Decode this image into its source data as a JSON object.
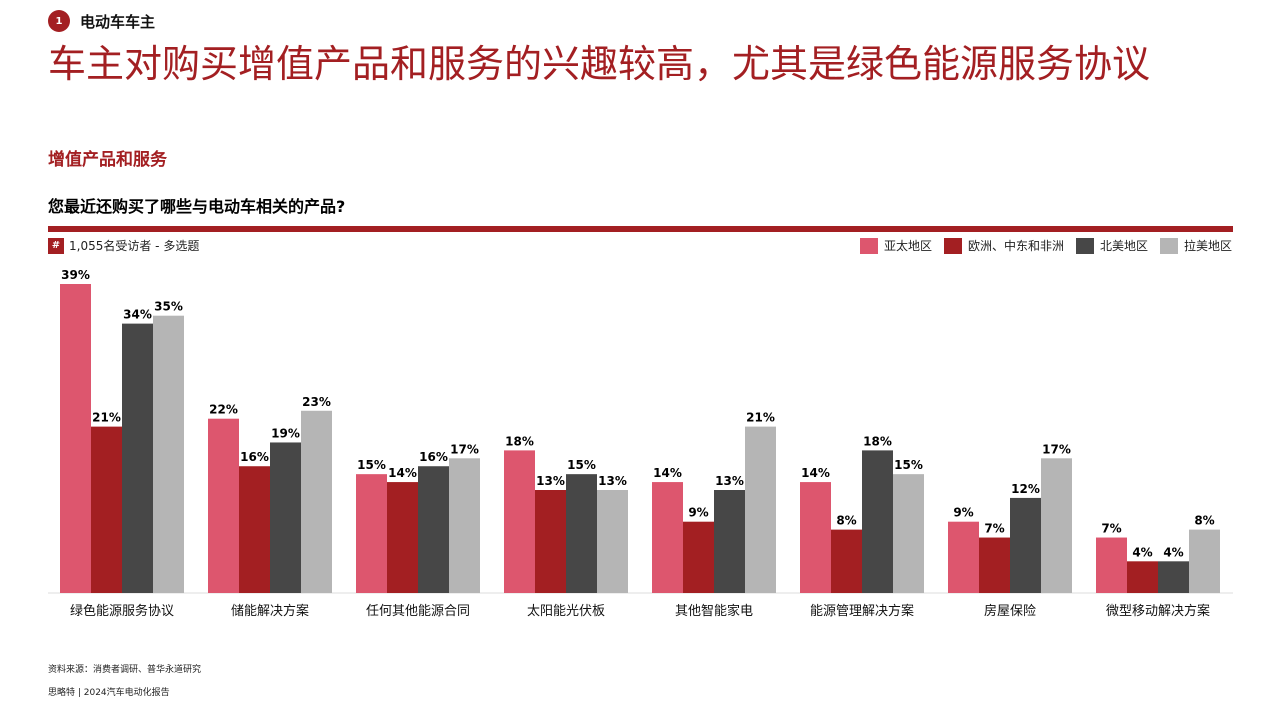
{
  "section": {
    "number": "1",
    "label": "电动车车主"
  },
  "title": "车主对购买增值产品和服务的兴趣较高，尤其是绿色能源服务协议",
  "subtitle": "增值产品和服务",
  "question": "您最近还购买了哪些与电动车相关的产品?",
  "respondents": {
    "icon": "#",
    "text": "1,055名受访者 - 多选题"
  },
  "source": "资料来源：消费者调研、普华永道研究",
  "footer": "思略特 | 2024汽车电动化报告",
  "colors": {
    "accent": "#a31f22"
  },
  "chart_data": {
    "type": "bar",
    "categories": [
      "绿色能源服务协议",
      "储能解决方案",
      "任何其他能源合同",
      "太阳能光伏板",
      "其他智能家电",
      "能源管理解决方案",
      "房屋保险",
      "微型移动解决方案"
    ],
    "series": [
      {
        "name": "亚太地区",
        "color": "#dd566e",
        "values": [
          39,
          22,
          15,
          18,
          14,
          14,
          9,
          7
        ]
      },
      {
        "name": "欧洲、中东和非洲",
        "color": "#a31f22",
        "values": [
          21,
          16,
          14,
          13,
          9,
          8,
          7,
          4
        ]
      },
      {
        "name": "北美地区",
        "color": "#474747",
        "values": [
          34,
          19,
          16,
          15,
          13,
          18,
          12,
          4
        ]
      },
      {
        "name": "拉美地区",
        "color": "#b5b5b5",
        "values": [
          35,
          23,
          17,
          13,
          21,
          15,
          17,
          8
        ]
      }
    ],
    "value_suffix": "%",
    "legend_position": "top-right",
    "ylim": [
      0,
      40
    ],
    "grid": false
  }
}
